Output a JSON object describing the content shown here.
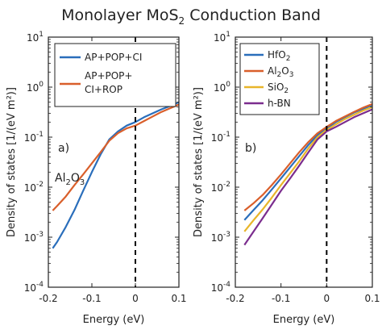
{
  "title": {
    "main": "Monolayer MoS",
    "sub": "2",
    "tail": " Conduction Band"
  },
  "colors": {
    "axis": "#222222",
    "dashed": "#000000"
  },
  "chart_data": [
    {
      "type": "line",
      "panel_label": "a)",
      "annotation": {
        "main": "Al",
        "sub": "2",
        "mid": "O",
        "sub2": "3"
      },
      "xlabel": "Energy (eV)",
      "ylabel": "Density of states [1/(eV m²)]",
      "xlim": [
        -0.2,
        0.1
      ],
      "ylim": [
        0.0001,
        10
      ],
      "yscale": "log",
      "x_ticks": [
        "-0.2",
        "-0.1",
        "0",
        "0.1"
      ],
      "y_ticks": [
        {
          "base": "10",
          "exp": "-4"
        },
        {
          "base": "10",
          "exp": "-3"
        },
        {
          "base": "10",
          "exp": "-2"
        },
        {
          "base": "10",
          "exp": "-1"
        },
        {
          "base": "10",
          "exp": "0"
        },
        {
          "base": "10",
          "exp": "1"
        }
      ],
      "vline_x": 0,
      "legend_position": "top-right",
      "series": [
        {
          "name": "AP+POP+CI",
          "color": "#2a6ebb",
          "x": [
            -0.19,
            -0.18,
            -0.16,
            -0.14,
            -0.12,
            -0.1,
            -0.08,
            -0.06,
            -0.04,
            -0.02,
            0,
            0.02,
            0.04,
            0.06,
            0.08,
            0.1
          ],
          "y": [
            0.0006,
            0.0008,
            0.0016,
            0.0035,
            0.0085,
            0.02,
            0.045,
            0.09,
            0.13,
            0.17,
            0.2,
            0.25,
            0.3,
            0.36,
            0.42,
            0.5
          ]
        },
        {
          "name": "AP+POP+\nCI+ROP",
          "color": "#d95f2b",
          "x": [
            -0.19,
            -0.18,
            -0.16,
            -0.14,
            -0.12,
            -0.1,
            -0.08,
            -0.06,
            -0.04,
            -0.02,
            0,
            0.02,
            0.04,
            0.06,
            0.08,
            0.1
          ],
          "y": [
            0.0034,
            0.0042,
            0.0065,
            0.011,
            0.018,
            0.03,
            0.05,
            0.085,
            0.12,
            0.15,
            0.17,
            0.21,
            0.26,
            0.32,
            0.38,
            0.45
          ]
        }
      ]
    },
    {
      "type": "line",
      "panel_label": "b)",
      "xlabel": "Energy (eV)",
      "ylabel": "Density of states [1/(eV m²)]",
      "xlim": [
        -0.2,
        0.1
      ],
      "ylim": [
        0.0001,
        10
      ],
      "yscale": "log",
      "x_ticks": [
        "-0.2",
        "-0.1",
        "0",
        "0.1"
      ],
      "y_ticks": [
        {
          "base": "10",
          "exp": "-4"
        },
        {
          "base": "10",
          "exp": "-3"
        },
        {
          "base": "10",
          "exp": "-2"
        },
        {
          "base": "10",
          "exp": "-1"
        },
        {
          "base": "10",
          "exp": "0"
        },
        {
          "base": "10",
          "exp": "1"
        }
      ],
      "vline_x": 0,
      "legend_position": "top-left",
      "series": [
        {
          "name": "HfO",
          "sub": "2",
          "color": "#2a6ebb",
          "x": [
            -0.18,
            -0.16,
            -0.14,
            -0.12,
            -0.1,
            -0.08,
            -0.06,
            -0.04,
            -0.02,
            0,
            0.02,
            0.04,
            0.06,
            0.08,
            0.1
          ],
          "y": [
            0.0022,
            0.0035,
            0.0055,
            0.009,
            0.015,
            0.025,
            0.042,
            0.07,
            0.11,
            0.15,
            0.2,
            0.25,
            0.31,
            0.37,
            0.44
          ]
        },
        {
          "name": "Al",
          "sub": "2",
          "mid": "O",
          "sub2": "3",
          "color": "#d95f2b",
          "x": [
            -0.18,
            -0.16,
            -0.14,
            -0.12,
            -0.1,
            -0.08,
            -0.06,
            -0.04,
            -0.02,
            0,
            0.02,
            0.04,
            0.06,
            0.08,
            0.1
          ],
          "y": [
            0.0034,
            0.0048,
            0.007,
            0.011,
            0.018,
            0.03,
            0.05,
            0.08,
            0.12,
            0.16,
            0.21,
            0.26,
            0.32,
            0.39,
            0.46
          ]
        },
        {
          "name": "SiO",
          "sub": "2",
          "color": "#e8b52a",
          "x": [
            -0.18,
            -0.16,
            -0.14,
            -0.12,
            -0.1,
            -0.08,
            -0.06,
            -0.04,
            -0.02,
            0,
            0.02,
            0.04,
            0.06,
            0.08,
            0.1
          ],
          "y": [
            0.0013,
            0.0022,
            0.0036,
            0.0062,
            0.011,
            0.019,
            0.033,
            0.06,
            0.1,
            0.14,
            0.18,
            0.23,
            0.28,
            0.34,
            0.4
          ]
        },
        {
          "name": "h-BN",
          "color": "#7b2d8e",
          "x": [
            -0.18,
            -0.16,
            -0.14,
            -0.12,
            -0.1,
            -0.08,
            -0.06,
            -0.04,
            -0.02,
            0,
            0.02,
            0.04,
            0.06,
            0.08,
            0.1
          ],
          "y": [
            0.0007,
            0.0013,
            0.0024,
            0.0045,
            0.0085,
            0.015,
            0.027,
            0.05,
            0.09,
            0.13,
            0.16,
            0.2,
            0.25,
            0.3,
            0.36
          ]
        }
      ]
    }
  ]
}
